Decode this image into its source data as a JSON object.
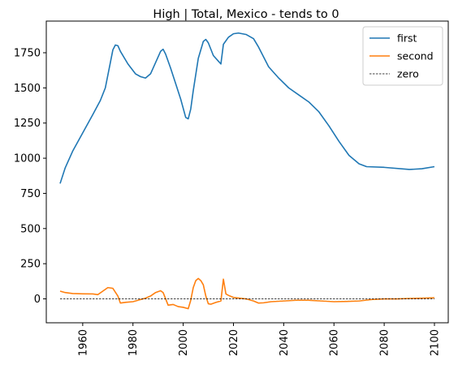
{
  "chart_data": {
    "type": "line",
    "title": "High | Total, Mexico  - tends to 0",
    "xlabel": "",
    "ylabel": "",
    "xlim": [
      1945.5,
      2105.5
    ],
    "ylim": [
      -170,
      1975
    ],
    "x_ticks": [
      1960,
      1980,
      2000,
      2020,
      2040,
      2060,
      2080,
      2100
    ],
    "y_ticks": [
      0,
      250,
      500,
      750,
      1000,
      1250,
      1500,
      1750
    ],
    "x_tick_labels": [
      "1960",
      "1980",
      "2000",
      "2020",
      "2040",
      "2060",
      "2080",
      "2100"
    ],
    "y_tick_labels": [
      "0",
      "250",
      "500",
      "750",
      "1000",
      "1250",
      "1500",
      "1750"
    ],
    "grid": false,
    "legend_position": "top-right",
    "series": [
      {
        "name": "first",
        "color": "#1f77b4",
        "style": "solid",
        "points": [
          [
            1951,
            820
          ],
          [
            1953,
            930
          ],
          [
            1956,
            1050
          ],
          [
            1960,
            1180
          ],
          [
            1964,
            1310
          ],
          [
            1967,
            1410
          ],
          [
            1969,
            1500
          ],
          [
            1971,
            1680
          ],
          [
            1972,
            1770
          ],
          [
            1973,
            1805
          ],
          [
            1974,
            1800
          ],
          [
            1975,
            1760
          ],
          [
            1978,
            1670
          ],
          [
            1981,
            1600
          ],
          [
            1983,
            1580
          ],
          [
            1985,
            1570
          ],
          [
            1987,
            1600
          ],
          [
            1989,
            1680
          ],
          [
            1991,
            1760
          ],
          [
            1992,
            1775
          ],
          [
            1993,
            1740
          ],
          [
            1995,
            1640
          ],
          [
            1997,
            1530
          ],
          [
            1999,
            1420
          ],
          [
            2001,
            1290
          ],
          [
            2002,
            1280
          ],
          [
            2003,
            1350
          ],
          [
            2004,
            1480
          ],
          [
            2006,
            1710
          ],
          [
            2008,
            1830
          ],
          [
            2009,
            1845
          ],
          [
            2010,
            1820
          ],
          [
            2012,
            1730
          ],
          [
            2014,
            1690
          ],
          [
            2015,
            1670
          ],
          [
            2016,
            1810
          ],
          [
            2018,
            1860
          ],
          [
            2020,
            1885
          ],
          [
            2022,
            1890
          ],
          [
            2025,
            1880
          ],
          [
            2028,
            1850
          ],
          [
            2030,
            1790
          ],
          [
            2032,
            1720
          ],
          [
            2034,
            1650
          ],
          [
            2038,
            1570
          ],
          [
            2042,
            1500
          ],
          [
            2046,
            1450
          ],
          [
            2050,
            1400
          ],
          [
            2054,
            1330
          ],
          [
            2058,
            1230
          ],
          [
            2062,
            1120
          ],
          [
            2066,
            1020
          ],
          [
            2070,
            960
          ],
          [
            2073,
            940
          ],
          [
            2080,
            935
          ],
          [
            2090,
            920
          ],
          [
            2095,
            925
          ],
          [
            2100,
            940
          ]
        ]
      },
      {
        "name": "second",
        "color": "#ff7f0e",
        "style": "solid",
        "points": [
          [
            1951,
            55
          ],
          [
            1953,
            45
          ],
          [
            1956,
            38
          ],
          [
            1960,
            36
          ],
          [
            1964,
            35
          ],
          [
            1966,
            30
          ],
          [
            1968,
            55
          ],
          [
            1970,
            80
          ],
          [
            1972,
            75
          ],
          [
            1974,
            20
          ],
          [
            1975,
            -30
          ],
          [
            1977,
            -25
          ],
          [
            1980,
            -20
          ],
          [
            1983,
            -5
          ],
          [
            1985,
            5
          ],
          [
            1987,
            20
          ],
          [
            1989,
            45
          ],
          [
            1991,
            58
          ],
          [
            1992,
            45
          ],
          [
            1994,
            -45
          ],
          [
            1996,
            -40
          ],
          [
            1998,
            -55
          ],
          [
            2000,
            -60
          ],
          [
            2002,
            -70
          ],
          [
            2003,
            -10
          ],
          [
            2004,
            80
          ],
          [
            2005,
            130
          ],
          [
            2006,
            145
          ],
          [
            2007,
            130
          ],
          [
            2008,
            100
          ],
          [
            2009,
            20
          ],
          [
            2010,
            -35
          ],
          [
            2011,
            -38
          ],
          [
            2013,
            -25
          ],
          [
            2015,
            -15
          ],
          [
            2016,
            140
          ],
          [
            2017,
            35
          ],
          [
            2018,
            25
          ],
          [
            2020,
            10
          ],
          [
            2025,
            0
          ],
          [
            2028,
            -15
          ],
          [
            2030,
            -30
          ],
          [
            2032,
            -28
          ],
          [
            2035,
            -20
          ],
          [
            2040,
            -15
          ],
          [
            2045,
            -10
          ],
          [
            2050,
            -10
          ],
          [
            2055,
            -15
          ],
          [
            2060,
            -20
          ],
          [
            2065,
            -18
          ],
          [
            2070,
            -15
          ],
          [
            2075,
            -5
          ],
          [
            2080,
            0
          ],
          [
            2085,
            0
          ],
          [
            2090,
            3
          ],
          [
            2095,
            5
          ],
          [
            2100,
            8
          ]
        ]
      },
      {
        "name": "zero",
        "color": "#000000",
        "style": "dashed",
        "points": [
          [
            1951,
            0
          ],
          [
            2100,
            0
          ]
        ]
      }
    ]
  }
}
